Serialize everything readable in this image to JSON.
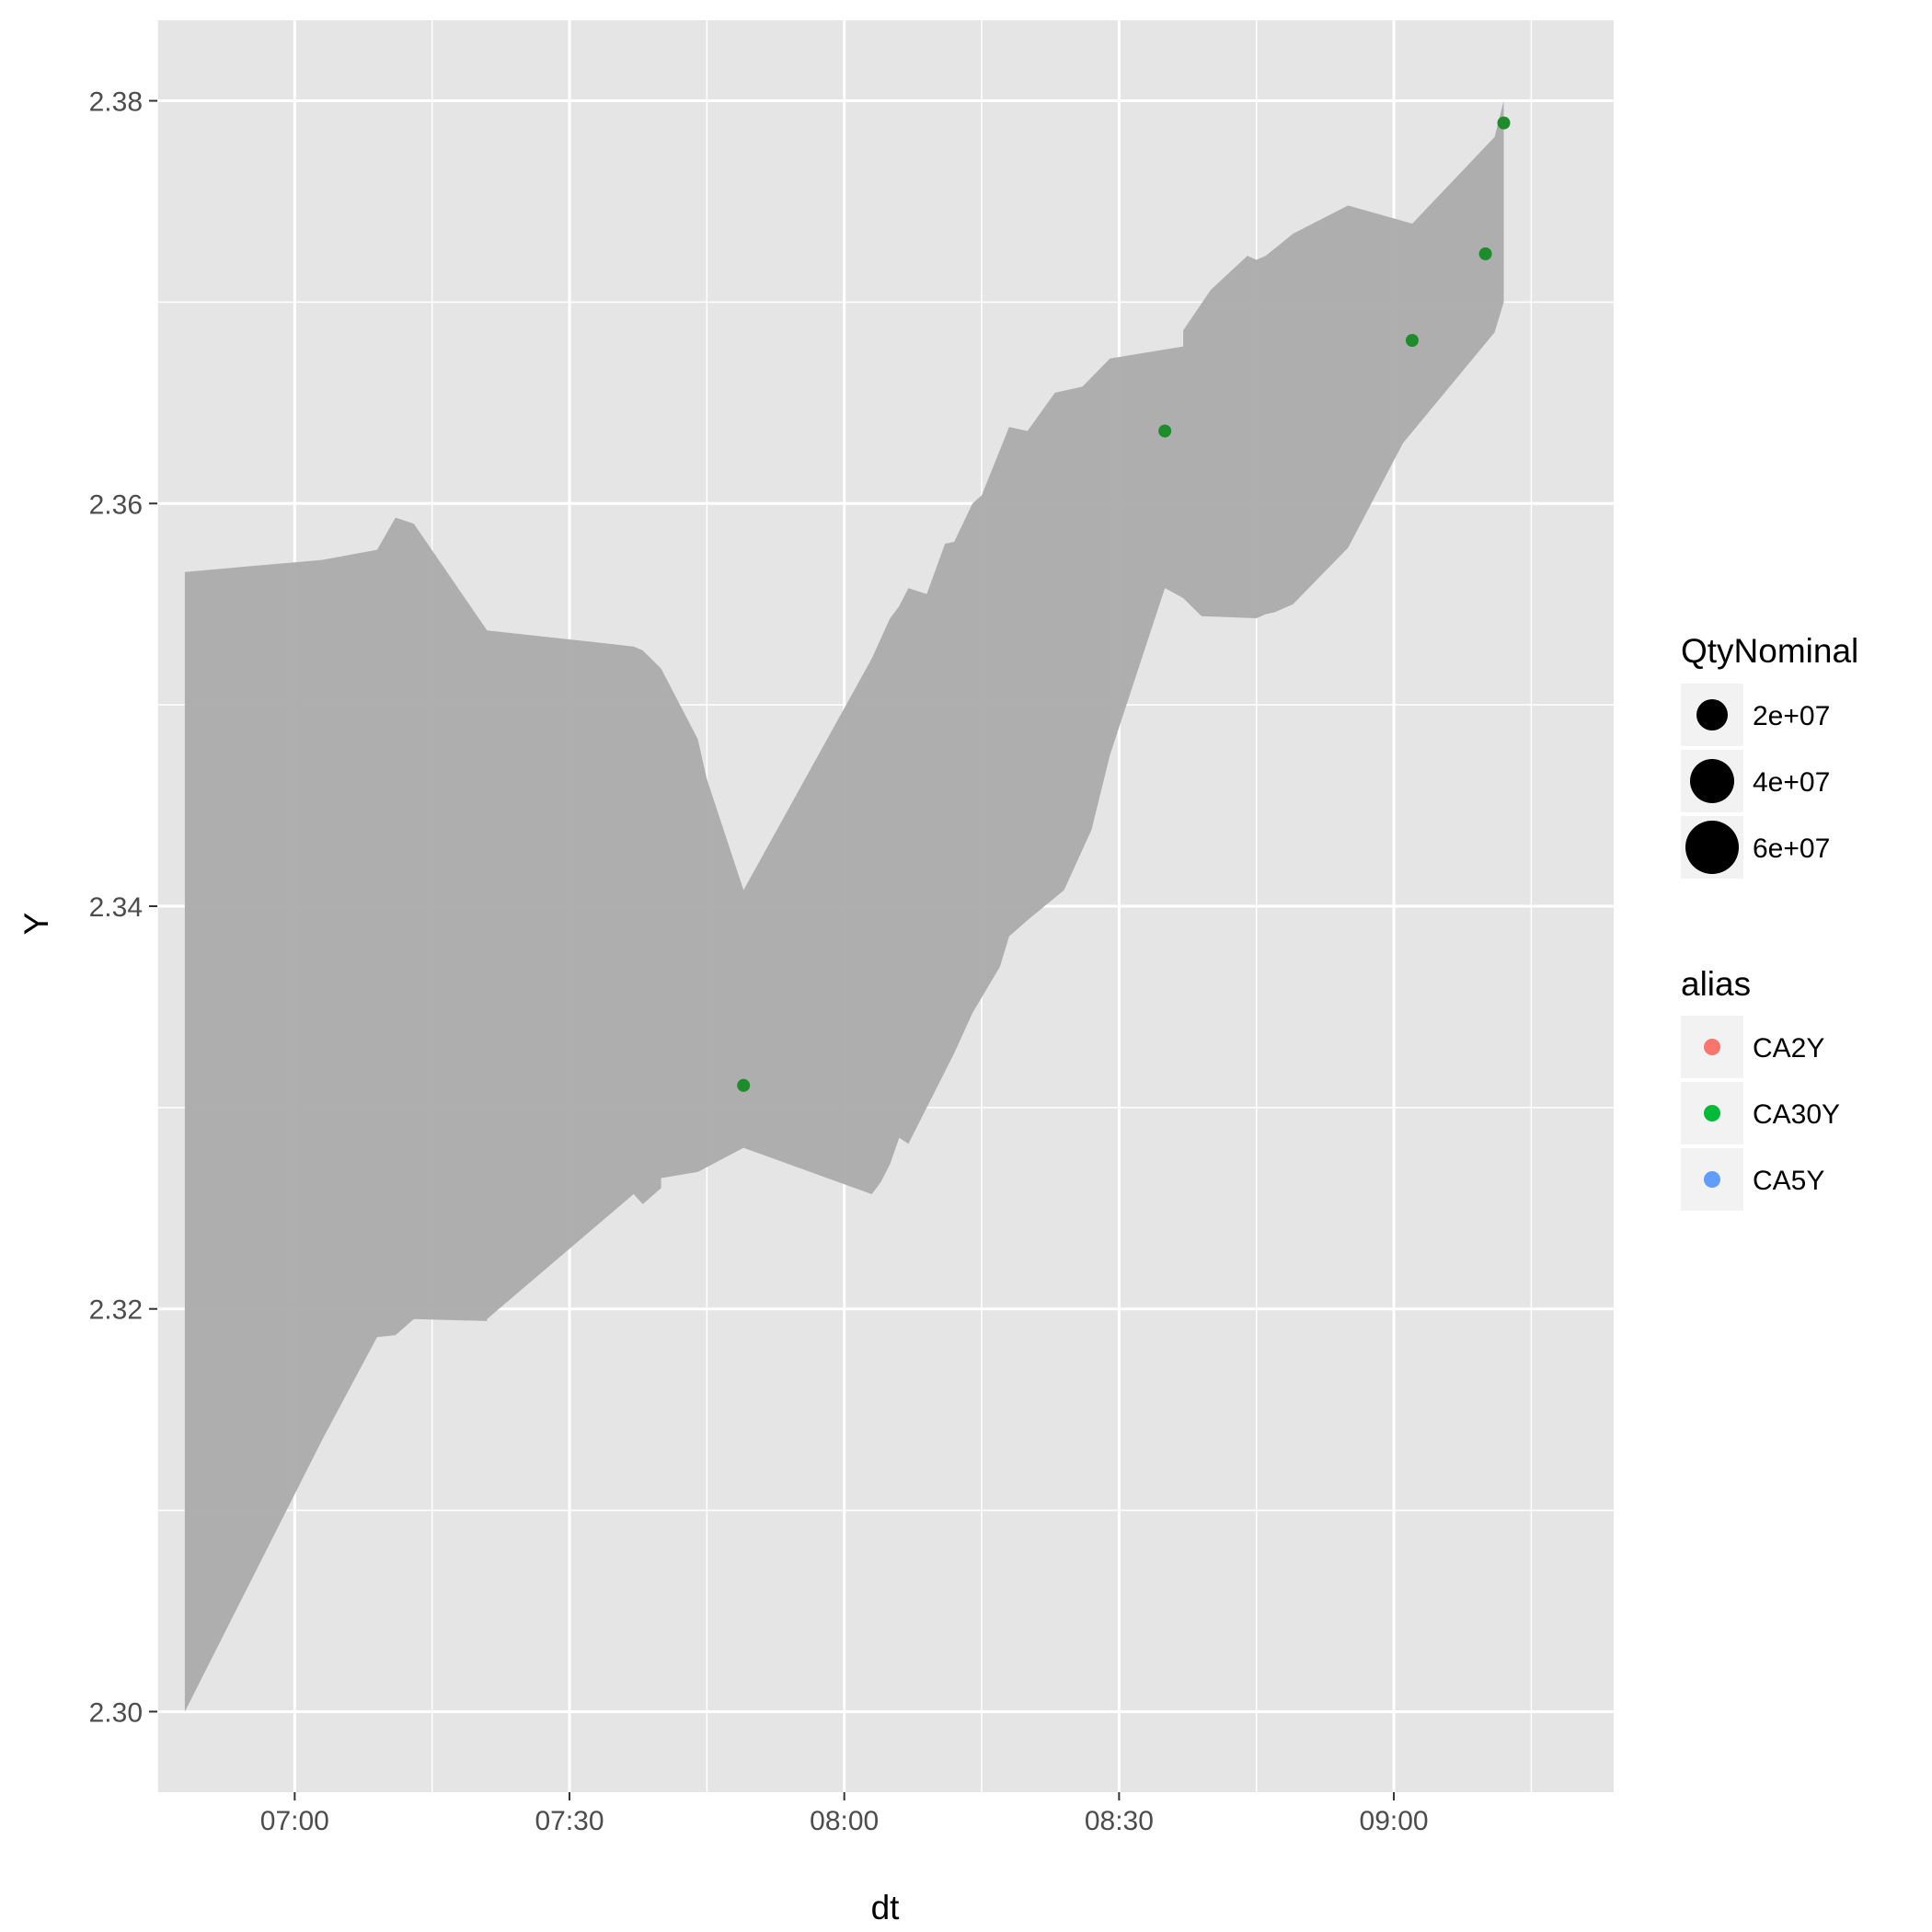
{
  "chart_data": {
    "type": "area",
    "xlabel": "dt",
    "ylabel": "Y",
    "x_ticks": [
      "07:00",
      "07:30",
      "08:00",
      "08:30",
      "09:00"
    ],
    "y_ticks": [
      "2.30",
      "2.32",
      "2.34",
      "2.36",
      "2.38"
    ],
    "xlim": [
      "06:45",
      "09:24"
    ],
    "ylim": [
      2.296,
      2.384
    ],
    "y_tick_values": [
      2.3,
      2.32,
      2.34,
      2.36,
      2.38
    ],
    "grid": true,
    "colors": {
      "panel": "#e5e5e5",
      "grid": "#ffffff",
      "ribbon": "#ababab",
      "point_ca30y": "#1e8c2b",
      "ca2y": "#f8766d",
      "ca30y": "#00ba38",
      "ca5y": "#619cff"
    },
    "ribbon": {
      "upper": [
        [
          "06:48",
          2.3566
        ],
        [
          "07:03",
          2.3572
        ],
        [
          "07:09",
          2.3577
        ],
        [
          "07:11",
          2.3593
        ],
        [
          "07:13",
          2.359
        ],
        [
          "07:21",
          2.3537
        ],
        [
          "07:37",
          2.3529
        ],
        [
          "07:38",
          2.3527
        ],
        [
          "07:40",
          2.3518
        ],
        [
          "07:44",
          2.3483
        ],
        [
          "07:45",
          2.3463
        ],
        [
          "07:49",
          2.3408
        ],
        [
          "08:03",
          2.3523
        ],
        [
          "08:05",
          2.3543
        ],
        [
          "08:06",
          2.3549
        ],
        [
          "08:07",
          2.3558
        ],
        [
          "08:09",
          2.3555
        ],
        [
          "08:11",
          2.358
        ],
        [
          "08:12",
          2.3581
        ],
        [
          "08:14",
          2.36
        ],
        [
          "08:15",
          2.3604
        ],
        [
          "08:18",
          2.3638
        ],
        [
          "08:20",
          2.3636
        ],
        [
          "08:23",
          2.3655
        ],
        [
          "08:26",
          2.3658
        ],
        [
          "08:29",
          2.3672
        ],
        [
          "08:37",
          2.3678
        ],
        [
          "08:37",
          2.3686
        ],
        [
          "08:40",
          2.3706
        ],
        [
          "08:44",
          2.3723
        ],
        [
          "08:45",
          2.3721
        ],
        [
          "08:46",
          2.3723
        ],
        [
          "08:49",
          2.3734
        ],
        [
          "08:55",
          2.3748
        ],
        [
          "09:02",
          2.3739
        ],
        [
          "09:11",
          2.3782
        ],
        [
          "09:12",
          2.38
        ]
      ],
      "lower": [
        [
          "09:12",
          2.37
        ],
        [
          "09:11",
          2.3685
        ],
        [
          "09:01",
          2.363
        ],
        [
          "08:55",
          2.3578
        ],
        [
          "08:49",
          2.355
        ],
        [
          "08:47",
          2.3546
        ],
        [
          "08:46",
          2.3545
        ],
        [
          "08:45",
          2.3543
        ],
        [
          "08:39",
          2.3544
        ],
        [
          "08:37",
          2.3553
        ],
        [
          "08:35",
          2.3558
        ],
        [
          "08:29",
          2.3475
        ],
        [
          "08:27",
          2.3438
        ],
        [
          "08:24",
          2.3408
        ],
        [
          "08:20",
          2.3393
        ],
        [
          "08:18",
          2.3385
        ],
        [
          "08:17",
          2.337
        ],
        [
          "08:14",
          2.3347
        ],
        [
          "08:12",
          2.3327
        ],
        [
          "08:07",
          2.3282
        ],
        [
          "08:06",
          2.3285
        ],
        [
          "08:05",
          2.3272
        ],
        [
          "08:04",
          2.3263
        ],
        [
          "08:03",
          2.3257
        ],
        [
          "07:49",
          2.328
        ],
        [
          "07:44",
          2.3268
        ],
        [
          "07:40",
          2.3265
        ],
        [
          "07:40",
          2.326
        ],
        [
          "07:38",
          2.3252
        ],
        [
          "07:37",
          2.3257
        ],
        [
          "07:21",
          2.3195
        ],
        [
          "07:21",
          2.3194
        ],
        [
          "07:13",
          2.3195
        ],
        [
          "07:11",
          2.3187
        ],
        [
          "07:09",
          2.3186
        ],
        [
          "07:03",
          2.3135
        ],
        [
          "06:48",
          2.3
        ]
      ]
    },
    "series": [
      {
        "name": "CA30Y",
        "points": [
          [
            "07:49",
            2.3311
          ],
          [
            "08:35",
            2.3636
          ],
          [
            "09:02",
            2.3681
          ],
          [
            "09:10",
            2.3724
          ],
          [
            "09:12",
            2.3789
          ]
        ]
      }
    ],
    "legend": {
      "placement": "right",
      "size": {
        "title": "QtyNominal",
        "items": [
          {
            "label": "2e+07",
            "value": 20000000
          },
          {
            "label": "4e+07",
            "value": 40000000
          },
          {
            "label": "6e+07",
            "value": 60000000
          }
        ]
      },
      "color": {
        "title": "alias",
        "items": [
          {
            "label": "CA2Y",
            "color": "#f8766d"
          },
          {
            "label": "CA30Y",
            "color": "#00ba38"
          },
          {
            "label": "CA5Y",
            "color": "#619cff"
          }
        ]
      }
    }
  }
}
